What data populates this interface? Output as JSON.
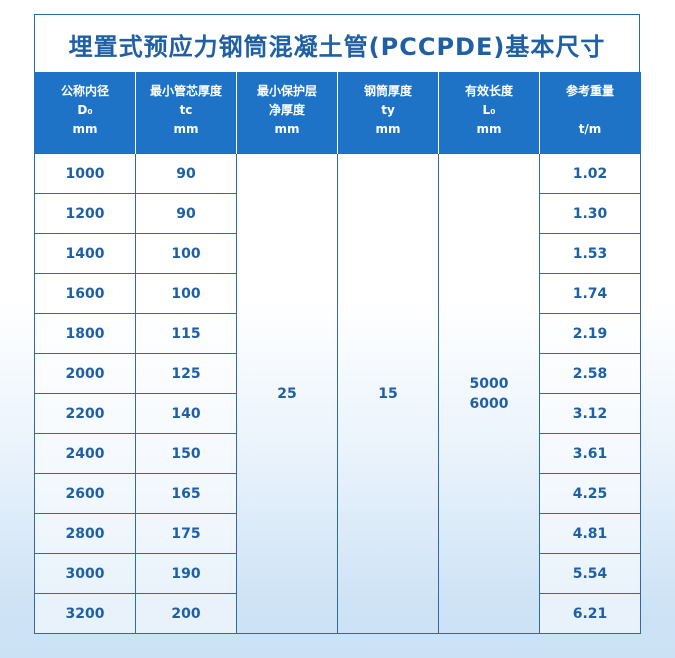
{
  "title": "埋置式预应力钢筒混凝土管(PCCPDE)基本尺寸",
  "headers": [
    {
      "line1": "公称内径",
      "line2": "D₀",
      "line3": "mm"
    },
    {
      "line1": "最小管芯厚度",
      "line2": "tc",
      "line3": "mm"
    },
    {
      "line1": "最小保护层",
      "line2": "净厚度",
      "line3": "mm"
    },
    {
      "line1": "钢筒厚度",
      "line2": "ty",
      "line3": "mm"
    },
    {
      "line1": "有效长度",
      "line2": "L₀",
      "line3": "mm"
    },
    {
      "line1": "参考重量",
      "line2": "",
      "line3": "t/m"
    }
  ],
  "merged": {
    "min_cover": "25",
    "steel_thickness": "15",
    "length_1": "5000",
    "length_2": "6000"
  },
  "rows": [
    {
      "diameter": "1000",
      "core": "90",
      "weight": "1.02"
    },
    {
      "diameter": "1200",
      "core": "90",
      "weight": "1.30"
    },
    {
      "diameter": "1400",
      "core": "100",
      "weight": "1.53"
    },
    {
      "diameter": "1600",
      "core": "100",
      "weight": "1.74"
    },
    {
      "diameter": "1800",
      "core": "115",
      "weight": "2.19"
    },
    {
      "diameter": "2000",
      "core": "125",
      "weight": "2.58"
    },
    {
      "diameter": "2200",
      "core": "140",
      "weight": "3.12"
    },
    {
      "diameter": "2400",
      "core": "150",
      "weight": "3.61"
    },
    {
      "diameter": "2600",
      "core": "165",
      "weight": "4.25"
    },
    {
      "diameter": "2800",
      "core": "175",
      "weight": "4.81"
    },
    {
      "diameter": "3000",
      "core": "190",
      "weight": "5.54"
    },
    {
      "diameter": "3200",
      "core": "200",
      "weight": "6.21"
    }
  ]
}
